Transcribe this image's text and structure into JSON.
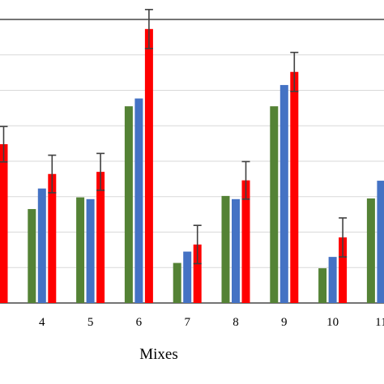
{
  "chart_data": {
    "type": "bar",
    "xlabel": "Mixes",
    "ylabel": "",
    "ylim": [
      0,
      8
    ],
    "grid": true,
    "categories": [
      "3",
      "4",
      "5",
      "6",
      "7",
      "8",
      "9",
      "10",
      "11"
    ],
    "tick_labels": [
      "",
      "4",
      "5",
      "6",
      "7",
      "8",
      "9",
      "10",
      "11"
    ],
    "series": [
      {
        "color": "#548235",
        "values": [
          null,
          2.65,
          2.98,
          5.55,
          1.13,
          3.02,
          5.55,
          0.98,
          2.95
        ]
      },
      {
        "color": "#4472C4",
        "values": [
          null,
          3.23,
          2.93,
          5.77,
          1.45,
          2.93,
          6.15,
          1.3,
          3.45
        ]
      },
      {
        "color": "#FF0000",
        "values": [
          4.48,
          3.64,
          3.7,
          7.73,
          1.65,
          3.46,
          6.52,
          1.85,
          null
        ],
        "errors": [
          0.5,
          0.53,
          0.52,
          0.55,
          0.54,
          0.53,
          0.55,
          0.55,
          null
        ]
      }
    ]
  }
}
